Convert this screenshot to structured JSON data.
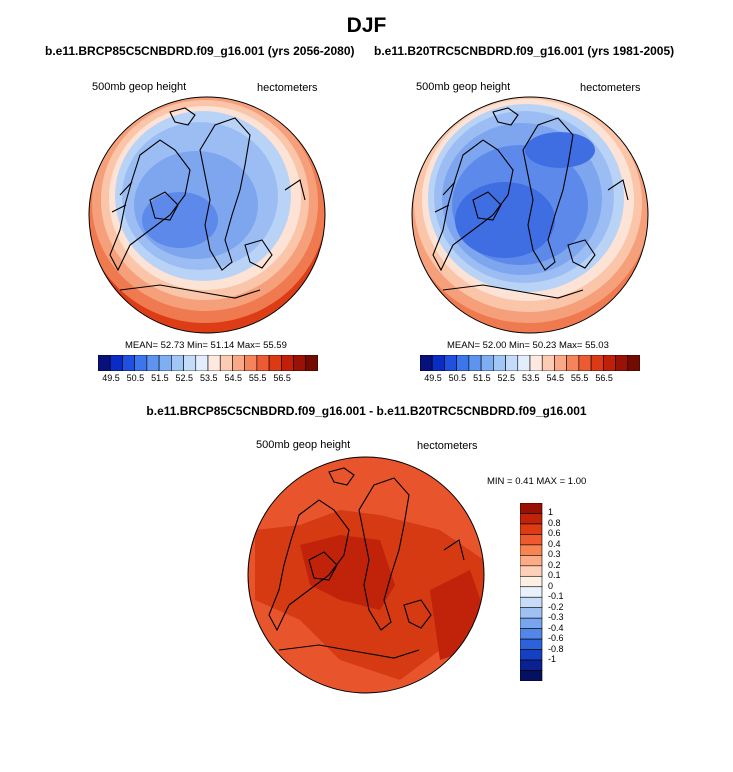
{
  "figure": {
    "title": "DJF"
  },
  "panels": {
    "left": {
      "run_title": "b.e11.BRCP85C5CNBDRD.f09_g16.001 (yrs 2056-2080)",
      "variable_label": "500mb geop height",
      "units_label": "hectometers",
      "stats": "MEAN=  52.73  Min=  51.14  Max=  55.59"
    },
    "right": {
      "run_title": "b.e11.B20TRC5CNBDRD.f09_g16.001 (yrs 1981-2005)",
      "variable_label": "500mb geop height",
      "units_label": "hectometers",
      "stats": "MEAN=  52.00  Min=  50.23  Max=  55.03"
    },
    "diff": {
      "run_title": "b.e11.BRCP85C5CNBDRD.f09_g16.001 - b.e11.B20TRC5CNBDRD.f09_g16.001",
      "variable_label": "500mb geop height",
      "units_label": "hectometers",
      "stats": "MIN =   0.41 MAX =   1.00"
    }
  },
  "colorbar_horizontal": {
    "colors": [
      "#08107a",
      "#0a2cc4",
      "#2050e0",
      "#3c76ec",
      "#5e94ef",
      "#7eaef3",
      "#a1c7f7",
      "#c3dcfa",
      "#e3eefd",
      "#fde9e0",
      "#fccbb4",
      "#f9a987",
      "#f5835c",
      "#ec5b33",
      "#dc3a14",
      "#c21f08",
      "#9a1205",
      "#730b03"
    ],
    "tick_labels": [
      "49.5",
      "50.5",
      "51.5",
      "52.5",
      "53.5",
      "54.5",
      "55.5",
      "56.5"
    ]
  },
  "colorbar_vertical": {
    "colors_top_to_bottom": [
      "#9a1003",
      "#c0230a",
      "#dc3b14",
      "#ee5a2d",
      "#f78452",
      "#fbac86",
      "#fdd0b7",
      "#fdefe4",
      "#e8f1fc",
      "#c7dcf7",
      "#9fc2f2",
      "#78a6ee",
      "#5287e9",
      "#2c63dd",
      "#1540c4",
      "#0a2192",
      "#061060"
    ],
    "tick_labels": [
      "1",
      "0.8",
      "0.6",
      "0.4",
      "0.3",
      "0.2",
      "0.1",
      "0",
      "-0.1",
      "-0.2",
      "-0.3",
      "-0.4",
      "-0.6",
      "-0.8",
      "-1"
    ]
  },
  "map_colors": {
    "blue_1": "#b9d3f6",
    "blue_2": "#9cbdf3",
    "blue_3": "#7da6ef",
    "blue_4": "#5d8aea",
    "blue_5": "#3f6ee3",
    "red_1": "#fde3d5",
    "red_2": "#fbc5a9",
    "red_3": "#f6a07b",
    "red_4": "#ef7a4f",
    "red_5": "#dc3d17",
    "diff_1": "#e8552c",
    "diff_2": "#d53a13",
    "diff_3": "#c0230a",
    "coast": "#000000"
  }
}
